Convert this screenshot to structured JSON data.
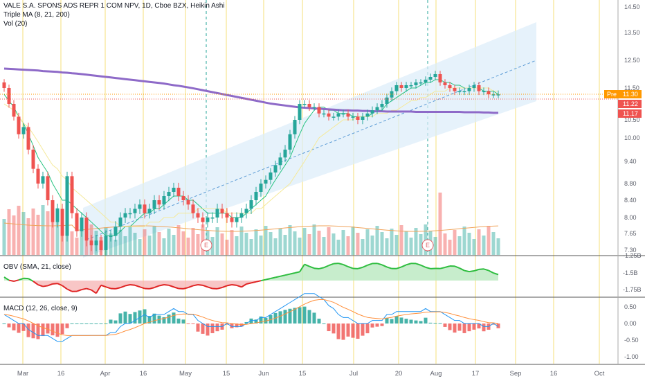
{
  "header": {
    "title": "VALE S.A. SPONS ADS REPR 1 COM NPV, 1D, Cboe BZX, Heikin Ashi",
    "indicator_1": "Triple MA (8, 21, 200)",
    "indicator_2": "Vol (20)"
  },
  "obv_pane": {
    "label": "OBV (SMA, 21, close)"
  },
  "macd_pane": {
    "label": "MACD (12, 26, close, 9)"
  },
  "price_badges": {
    "pre_label": "Pre",
    "pre_value": "11.30",
    "last_value": "11.22",
    "ma_value": "11.17"
  },
  "earnings_marker": "E",
  "colors": {
    "up": "#26a69a",
    "down": "#ef5350",
    "ma8": "#26c281",
    "ma21": "#f5e99a",
    "ma200": "#8e6ac8",
    "channel_fill": "#dcecf9",
    "vertical_lines": "#f5df7a",
    "obv_up": "#2ebd3f",
    "obv_down": "#e02424",
    "macd_line": "#2196f3",
    "signal_line": "#ff8f3a",
    "pre_badge": "#ff9800"
  },
  "chart_data": [
    {
      "type": "candlestick",
      "title": "VALE S.A. SPONS ADS REPR 1 COM NPV, 1D, Cboe BZX, Heikin Ashi",
      "y_ticks": [
        "14.50",
        "13.50",
        "12.50",
        "11.50",
        "10.50",
        "10.00",
        "9.40",
        "8.80",
        "8.40",
        "8.00",
        "7.65",
        "7.30"
      ],
      "x_ticks": [
        "Mar",
        "16",
        "Apr",
        "16",
        "May",
        "15",
        "Jun",
        "15",
        "Jul",
        "20",
        "Aug",
        "17",
        "Sep",
        "16",
        "Oct"
      ],
      "close": [
        11.5,
        11.0,
        10.6,
        10.1,
        10.3,
        9.7,
        9.2,
        8.8,
        9.0,
        8.4,
        7.9,
        8.2,
        7.6,
        9.0,
        8.1,
        7.7,
        8.0,
        7.5,
        7.4,
        7.5,
        7.3,
        7.6,
        7.6,
        7.8,
        8.0,
        8.1,
        8.1,
        8.2,
        8.3,
        8.1,
        8.2,
        8.4,
        8.3,
        8.5,
        8.6,
        8.7,
        8.5,
        8.4,
        8.3,
        8.1,
        8.0,
        7.9,
        8.0,
        8.0,
        8.2,
        8.1,
        8.0,
        7.9,
        8.0,
        8.1,
        8.2,
        8.4,
        8.6,
        8.8,
        8.9,
        9.1,
        9.3,
        9.5,
        9.7,
        10.1,
        10.5,
        11.0,
        11.0,
        10.9,
        10.9,
        10.7,
        10.7,
        10.6,
        10.6,
        10.7,
        10.7,
        10.6,
        10.6,
        10.5,
        10.6,
        10.7,
        10.8,
        10.9,
        11.0,
        11.2,
        11.4,
        11.6,
        11.5,
        11.6,
        11.6,
        11.7,
        11.7,
        11.8,
        11.9,
        12.0,
        11.7,
        11.6,
        11.5,
        11.4,
        11.4,
        11.4,
        11.5,
        11.6,
        11.4,
        11.4,
        11.3,
        11.3,
        11.3
      ],
      "ma_series": [
        {
          "name": "MA 8",
          "values": [
            11.3,
            11.1,
            10.9,
            10.6,
            10.4,
            10.1,
            9.8,
            9.5,
            9.3,
            9.1,
            8.8,
            8.6,
            8.4,
            8.4,
            8.3,
            8.2,
            8.1,
            8.0,
            7.9,
            7.8,
            7.7,
            7.6,
            7.6,
            7.6,
            7.7,
            7.8,
            7.8,
            7.9,
            8.0,
            8.1,
            8.1,
            8.2,
            8.2,
            8.3,
            8.4,
            8.5,
            8.5,
            8.5,
            8.4,
            8.4,
            8.3,
            8.2,
            8.1,
            8.1,
            8.1,
            8.1,
            8.1,
            8.0,
            8.0,
            8.0,
            8.1,
            8.2,
            8.3,
            8.4,
            8.5,
            8.7,
            8.9,
            9.1,
            9.3,
            9.5,
            9.8,
            10.1,
            10.4,
            10.6,
            10.8,
            10.9,
            10.9,
            10.8,
            10.8,
            10.7,
            10.7,
            10.7,
            10.6,
            10.6,
            10.6,
            10.6,
            10.7,
            10.8,
            10.8,
            11.0,
            11.1,
            11.2,
            11.3,
            11.4,
            11.5,
            11.5,
            11.6,
            11.7,
            11.7,
            11.8,
            11.8,
            11.7,
            11.7,
            11.6,
            11.6,
            11.5,
            11.5,
            11.5,
            11.5,
            11.4,
            11.4,
            11.4,
            11.3
          ]
        },
        {
          "name": "MA 21",
          "values": [
            11.0,
            10.9,
            10.8,
            10.6,
            10.4,
            10.3,
            10.1,
            9.9,
            9.7,
            9.5,
            9.3,
            9.2,
            9.0,
            8.9,
            8.7,
            8.6,
            8.5,
            8.4,
            8.3,
            8.2,
            8.1,
            8.0,
            7.9,
            7.9,
            7.8,
            7.8,
            7.8,
            7.8,
            7.8,
            7.8,
            7.9,
            7.9,
            7.9,
            8.0,
            8.0,
            8.0,
            8.1,
            8.1,
            8.1,
            8.1,
            8.2,
            8.2,
            8.2,
            8.2,
            8.2,
            8.2,
            8.1,
            8.1,
            8.1,
            8.1,
            8.1,
            8.1,
            8.2,
            8.2,
            8.3,
            8.4,
            8.5,
            8.6,
            8.7,
            8.8,
            9.0,
            9.2,
            9.4,
            9.6,
            9.8,
            10.0,
            10.1,
            10.2,
            10.3,
            10.4,
            10.5,
            10.5,
            10.5,
            10.6,
            10.6,
            10.6,
            10.6,
            10.7,
            10.7,
            10.7,
            10.8,
            10.8,
            10.9,
            11.0,
            11.1,
            11.1,
            11.2,
            11.2,
            11.3,
            11.4,
            11.4,
            11.4,
            11.5,
            11.5,
            11.5,
            11.5,
            11.5,
            11.5,
            11.5,
            11.5,
            11.5,
            11.4,
            11.4
          ]
        },
        {
          "name": "MA 200",
          "values": [
            12.2,
            12.19,
            12.18,
            12.17,
            12.16,
            12.15,
            12.14,
            12.13,
            12.11,
            12.1,
            12.09,
            12.08,
            12.06,
            12.05,
            12.03,
            12.02,
            12.0,
            11.98,
            11.96,
            11.94,
            11.92,
            11.9,
            11.88,
            11.86,
            11.84,
            11.82,
            11.8,
            11.78,
            11.76,
            11.74,
            11.72,
            11.7,
            11.68,
            11.66,
            11.63,
            11.6,
            11.58,
            11.55,
            11.52,
            11.49,
            11.46,
            11.43,
            11.4,
            11.37,
            11.34,
            11.31,
            11.28,
            11.25,
            11.22,
            11.19,
            11.16,
            11.13,
            11.1,
            11.07,
            11.04,
            11.01,
            10.99,
            10.97,
            10.95,
            10.93,
            10.91,
            10.89,
            10.88,
            10.87,
            10.86,
            10.85,
            10.84,
            10.83,
            10.82,
            10.81,
            10.8,
            10.8,
            10.79,
            10.79,
            10.78,
            10.78,
            10.77,
            10.77,
            10.77,
            10.76,
            10.76,
            10.76,
            10.76,
            10.76,
            10.76,
            10.75,
            10.75,
            10.75,
            10.75,
            10.75,
            10.75,
            10.75,
            10.75,
            10.75,
            10.75,
            10.74,
            10.74,
            10.74,
            10.74,
            10.73,
            10.73,
            10.72,
            10.72
          ]
        }
      ],
      "volume_up_down": "derived from candle direction"
    },
    {
      "type": "area",
      "title": "OBV (SMA, 21, close)",
      "y_ticks": [
        "-1.25B",
        "-1.5B",
        "-1.75B"
      ]
    },
    {
      "type": "bar",
      "title": "MACD (12, 26, close, 9)",
      "y_ticks": [
        "0.50",
        "0.00",
        "-0.50",
        "-1.00"
      ]
    }
  ]
}
